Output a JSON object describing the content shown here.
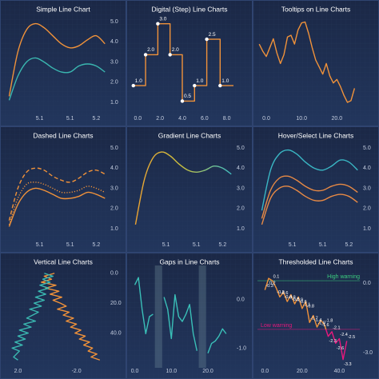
{
  "chart_data": [
    {
      "type": "line",
      "title": "Simple Line Chart",
      "smooth": true,
      "x": [
        5.0,
        5.02,
        5.04,
        5.06,
        5.08,
        5.1,
        5.12,
        5.14,
        5.16,
        5.18,
        5.2,
        5.22
      ],
      "series": [
        {
          "color": "#f0923a",
          "values": [
            1.3,
            3.5,
            4.6,
            4.9,
            4.7,
            4.3,
            3.9,
            3.7,
            3.8,
            4.1,
            4.3,
            3.9
          ]
        },
        {
          "color": "#3ab7b0",
          "values": [
            1.1,
            2.3,
            3.0,
            3.2,
            3.0,
            2.7,
            2.5,
            2.5,
            2.8,
            2.9,
            2.8,
            2.5
          ]
        }
      ],
      "xlim": [
        4.99,
        5.225
      ],
      "xticks": [
        {
          "value": 5.07,
          "label": "5.1"
        },
        {
          "value": 5.14,
          "label": "5.1"
        },
        5.2
      ],
      "ylim": [
        0.6,
        5.2
      ],
      "yticks": [
        {
          "value": 1,
          "label": "1.0"
        },
        {
          "value": 2,
          "label": "2.0"
        },
        {
          "value": 3,
          "label": "3.0"
        },
        {
          "value": 4,
          "label": "4.0"
        },
        {
          "value": 5,
          "label": "5.0"
        }
      ]
    },
    {
      "type": "step",
      "title": "Digital (Step) Line Charts",
      "x": [
        -0.4,
        0.7,
        1.8,
        2.9,
        4.0,
        5.1,
        6.2,
        7.4
      ],
      "series": [
        {
          "color": "#f0923a",
          "values": [
            1,
            2,
            3,
            2,
            0.5,
            1,
            2.5,
            1
          ],
          "value_labels": [
            "1.0",
            "2.0",
            "3.0",
            "2.0",
            "0.5",
            "1.0",
            "2.5",
            "1.0"
          ]
        }
      ],
      "xlim": [
        -0.6,
        8.6
      ],
      "xticks": [
        {
          "value": 0,
          "label": "0.0"
        },
        {
          "value": 2,
          "label": "2.0"
        },
        {
          "value": 4,
          "label": "4.0"
        },
        {
          "value": 6,
          "label": "6.0"
        },
        {
          "value": 8,
          "label": "8.0"
        }
      ],
      "ylim": [
        0.2,
        3.2
      ],
      "yticks": []
    },
    {
      "type": "line",
      "title": "Tooltips on Line Charts",
      "x": [
        -2,
        -1,
        0,
        1,
        2,
        3,
        4,
        5,
        6,
        7,
        8,
        9,
        10,
        11,
        12,
        13,
        14,
        15,
        16,
        17,
        18,
        19,
        20,
        21,
        22,
        23,
        24,
        25
      ],
      "series": [
        {
          "color": "#f0923a",
          "values": [
            7.0,
            6.2,
            5.6,
            6.6,
            7.6,
            6.0,
            4.8,
            5.8,
            7.8,
            8.0,
            7.0,
            8.6,
            9.4,
            9.5,
            8.2,
            6.6,
            5.2,
            4.4,
            3.6,
            4.8,
            3.4,
            2.6,
            3.0,
            2.2,
            1.2,
            0.4,
            0.6,
            2.0
          ]
        }
      ],
      "xlim": [
        -2.5,
        26.5
      ],
      "xticks": [
        {
          "value": 0,
          "label": "0.0"
        },
        {
          "value": 10,
          "label": "10.0"
        },
        {
          "value": 20,
          "label": "20.0"
        }
      ],
      "ylim": [
        -0.5,
        10
      ],
      "yticks": []
    },
    {
      "type": "line",
      "title": "Dashed Line Charts",
      "smooth": true,
      "x": [
        5.0,
        5.02,
        5.04,
        5.06,
        5.08,
        5.1,
        5.12,
        5.14,
        5.16,
        5.18,
        5.2,
        5.22
      ],
      "series": [
        {
          "color": "#f0923a",
          "dash": "dashed",
          "values": [
            1.4,
            3.0,
            3.8,
            4.0,
            3.9,
            3.6,
            3.4,
            3.3,
            3.5,
            3.8,
            3.9,
            3.7
          ]
        },
        {
          "color": "#f0923a",
          "dash": "dotted",
          "values": [
            1.2,
            2.5,
            3.2,
            3.3,
            3.2,
            3.0,
            2.8,
            2.8,
            2.9,
            3.1,
            3.0,
            2.8
          ]
        },
        {
          "color": "#f0923a",
          "dash": "solid",
          "values": [
            1.1,
            2.2,
            2.8,
            3.0,
            2.9,
            2.7,
            2.5,
            2.5,
            2.6,
            2.8,
            2.7,
            2.5
          ]
        }
      ],
      "xlim": [
        4.99,
        5.225
      ],
      "xticks": [
        {
          "value": 5.07,
          "label": "5.1"
        },
        {
          "value": 5.14,
          "label": "5.1"
        },
        5.2
      ],
      "ylim": [
        0.6,
        5.2
      ],
      "yticks": [
        {
          "value": 1,
          "label": "1.0"
        },
        {
          "value": 2,
          "label": "2.0"
        },
        {
          "value": 3,
          "label": "3.0"
        },
        {
          "value": 4,
          "label": "4.0"
        },
        {
          "value": 5,
          "label": "5.0"
        }
      ]
    },
    {
      "type": "line",
      "title": "Gradient Line Charts",
      "smooth": true,
      "x": [
        5.0,
        5.02,
        5.04,
        5.06,
        5.08,
        5.1,
        5.12,
        5.14,
        5.16,
        5.18,
        5.2,
        5.22
      ],
      "series": [
        {
          "gradient": [
            "#f0a030",
            "#c8c040",
            "#3ac0c8"
          ],
          "values": [
            1.2,
            3.4,
            4.5,
            4.8,
            4.6,
            4.2,
            3.9,
            3.8,
            3.9,
            4.1,
            4.0,
            3.7
          ]
        }
      ],
      "xlim": [
        4.99,
        5.225
      ],
      "xticks": [
        {
          "value": 5.07,
          "label": "5.1"
        },
        {
          "value": 5.14,
          "label": "5.1"
        },
        5.2
      ],
      "ylim": [
        0.6,
        5.2
      ],
      "yticks": [
        {
          "value": 1,
          "label": "1.0"
        },
        {
          "value": 2,
          "label": "2.0"
        },
        {
          "value": 3,
          "label": "3.0"
        },
        {
          "value": 4,
          "label": "4.0"
        },
        {
          "value": 5,
          "label": "5.0"
        }
      ]
    },
    {
      "type": "line",
      "title": "Hover/Select Line Charts",
      "smooth": true,
      "x": [
        5.0,
        5.02,
        5.04,
        5.06,
        5.08,
        5.1,
        5.12,
        5.14,
        5.16,
        5.18,
        5.2,
        5.22
      ],
      "series": [
        {
          "color": "#3ab7c4",
          "values": [
            1.9,
            3.9,
            4.7,
            4.9,
            4.7,
            4.3,
            4.0,
            3.9,
            4.1,
            4.4,
            4.3,
            3.9
          ]
        },
        {
          "color": "#e88a45",
          "values": [
            1.5,
            2.9,
            3.5,
            3.6,
            3.4,
            3.1,
            2.9,
            2.9,
            3.1,
            3.2,
            3.1,
            2.8
          ]
        },
        {
          "color": "#e88a45",
          "values": [
            1.2,
            2.5,
            3.0,
            3.1,
            2.9,
            2.6,
            2.4,
            2.4,
            2.6,
            2.7,
            2.6,
            2.3
          ]
        }
      ],
      "xlim": [
        4.99,
        5.225
      ],
      "xticks": [
        {
          "value": 5.07,
          "label": "5.1"
        },
        {
          "value": 5.14,
          "label": "5.1"
        },
        5.2
      ],
      "ylim": [
        0.6,
        5.2
      ],
      "yticks": [
        {
          "value": 1,
          "label": "1.0"
        },
        {
          "value": 2,
          "label": "2.0"
        },
        {
          "value": 3,
          "label": "3.0"
        },
        {
          "value": 4,
          "label": "4.0"
        },
        {
          "value": 5,
          "label": "5.0"
        }
      ]
    },
    {
      "type": "line",
      "title": "Vertical Line Charts",
      "orientation": "vertical",
      "x": [
        0,
        2,
        4,
        6,
        8,
        10,
        12,
        14,
        16,
        18,
        20,
        22,
        24,
        26,
        28,
        30,
        32,
        34,
        36,
        38,
        40,
        42,
        44,
        46,
        48,
        50,
        52,
        54,
        56,
        58
      ],
      "series": [
        {
          "color": "#f0923a",
          "values": [
            -0.5,
            0.2,
            -0.3,
            0.4,
            -0.6,
            0.1,
            -0.8,
            -0.2,
            -1.0,
            -0.4,
            -0.9,
            -1.3,
            -0.7,
            -1.5,
            -1.1,
            -1.8,
            -1.3,
            -2.0,
            -1.6,
            -2.3,
            -1.9,
            -2.6,
            -2.2,
            -2.9,
            -2.5,
            -3.1,
            -2.8,
            -3.4,
            -3.0,
            -3.6
          ]
        },
        {
          "color": "#3ab7b0",
          "values": [
            0.2,
            -0.4,
            0.3,
            -0.2,
            0.5,
            -0.1,
            0.6,
            0.1,
            0.8,
            0.2,
            0.9,
            0.4,
            1.2,
            0.6,
            1.0,
            1.4,
            0.8,
            1.6,
            1.1,
            1.9,
            1.3,
            2.0,
            1.5,
            2.2,
            1.7,
            2.4,
            1.9,
            2.1,
            2.3,
            2.0
          ]
        }
      ],
      "xlim": [
        -2,
        60
      ],
      "xticks": [
        {
          "value": 0,
          "label": "0.0"
        },
        {
          "value": 20,
          "label": "20.0"
        },
        {
          "value": 40,
          "label": "40.0"
        }
      ],
      "ylim": [
        2.9,
        -4.1
      ],
      "yticks": [
        {
          "value": 2,
          "label": "2.0"
        },
        {
          "value": -2,
          "label": "-2.0"
        }
      ]
    },
    {
      "type": "line",
      "title": "Gaps in Line Charts",
      "x": [
        0,
        1,
        2,
        3,
        4,
        5,
        6,
        7,
        8,
        9,
        10,
        11,
        12,
        13,
        14,
        15,
        16,
        17,
        18,
        19,
        20,
        21,
        22,
        23,
        24,
        25
      ],
      "series": [
        {
          "color": "#3ac0b8",
          "values": [
            0.3,
            0.45,
            -0.2,
            -0.7,
            -0.35,
            -0.3,
            null,
            null,
            0.05,
            -0.2,
            -0.8,
            0.1,
            -0.35,
            -0.45,
            -0.3,
            -0.1,
            -0.7,
            -1.05,
            null,
            null,
            -1.1,
            -0.9,
            -0.85,
            -0.75,
            -0.6,
            -0.7
          ]
        }
      ],
      "xlim": [
        -1,
        27
      ],
      "xticks": [
        {
          "value": 0,
          "label": "0.0"
        },
        {
          "value": 10,
          "label": "10.0"
        },
        {
          "value": 20,
          "label": "20.0"
        }
      ],
      "ylim": [
        -1.3,
        0.6
      ],
      "yticks": [
        {
          "value": 0,
          "label": "0.0"
        },
        {
          "value": -1,
          "label": "-1.0"
        }
      ]
    },
    {
      "type": "line",
      "title": "Thresholded Line Charts",
      "data_labels": true,
      "x": [
        0,
        2,
        4,
        6,
        8,
        10,
        12,
        14,
        16,
        18,
        20,
        22,
        24,
        26,
        28,
        30,
        32,
        34,
        36,
        38,
        40,
        42,
        44
      ],
      "series": [
        {
          "color": "#f0923a",
          "values": [
            -0.3,
            0.2,
            0.1,
            -0.2,
            -0.6,
            -0.4,
            -0.8,
            -0.5,
            -0.9,
            -0.6,
            -1.1,
            -0.8,
            -1.7,
            -1.4,
            -1.9,
            -1.6,
            -1.8,
            -2.3,
            -2.1,
            -2.6,
            -2.4,
            -3.3,
            -2.5
          ]
        }
      ],
      "thresholds": [
        {
          "name": "High warning",
          "value": 0.1,
          "color": "#3ccf80"
        },
        {
          "name": "Low warning",
          "value": -2.0,
          "color": "#e8187c"
        }
      ],
      "xlim": [
        -4,
        51
      ],
      "xticks": [
        {
          "value": 0,
          "label": "0.0"
        },
        {
          "value": 20,
          "label": "20.0"
        },
        {
          "value": 40,
          "label": "40.0"
        }
      ],
      "ylim": [
        -3.45,
        0.55
      ],
      "yticks": [
        {
          "value": 0,
          "label": "0.0"
        },
        {
          "value": -3,
          "label": "-3.0"
        }
      ]
    }
  ]
}
